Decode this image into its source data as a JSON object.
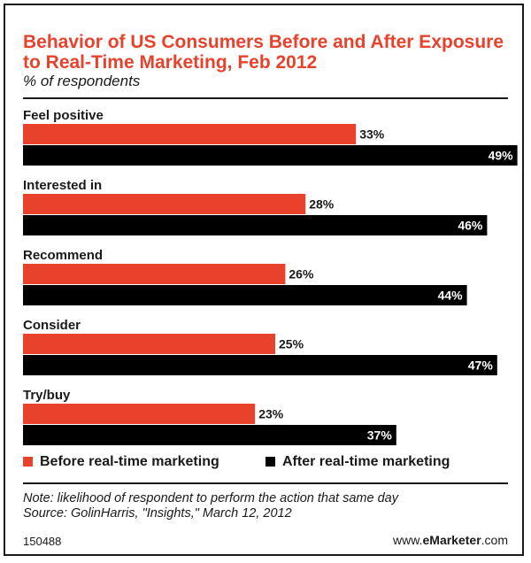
{
  "chart_data": {
    "type": "bar",
    "orientation": "horizontal",
    "title": "Behavior of US Consumers Before and After Exposure\nto Real-Time Marketing, Feb 2012",
    "subtitle": "% of respondents",
    "categories": [
      "Feel positive",
      "Interested in",
      "Recommend",
      "Consider",
      "Try/buy"
    ],
    "series": [
      {
        "name": "Before real-time marketing",
        "color": "#e8412c",
        "values": [
          33,
          28,
          26,
          25,
          23
        ],
        "labels": [
          "33%",
          "28%",
          "26%",
          "25%",
          "23%"
        ]
      },
      {
        "name": "After real-time marketing",
        "color": "#000000",
        "values": [
          49,
          46,
          44,
          47,
          37
        ],
        "labels": [
          "49%",
          "46%",
          "44%",
          "47%",
          "37%"
        ]
      }
    ],
    "xlim": [
      0,
      52
    ],
    "grid": false,
    "legend": "bottom"
  },
  "note": "Note: likelihood of respondent to perform the action that same day",
  "source": "Source: GolinHarris, \"Insights,\" March 12, 2012",
  "chart_id": "150488",
  "brand": {
    "prefix": "www.",
    "name": "eMarketer",
    "suffix": ".com"
  }
}
